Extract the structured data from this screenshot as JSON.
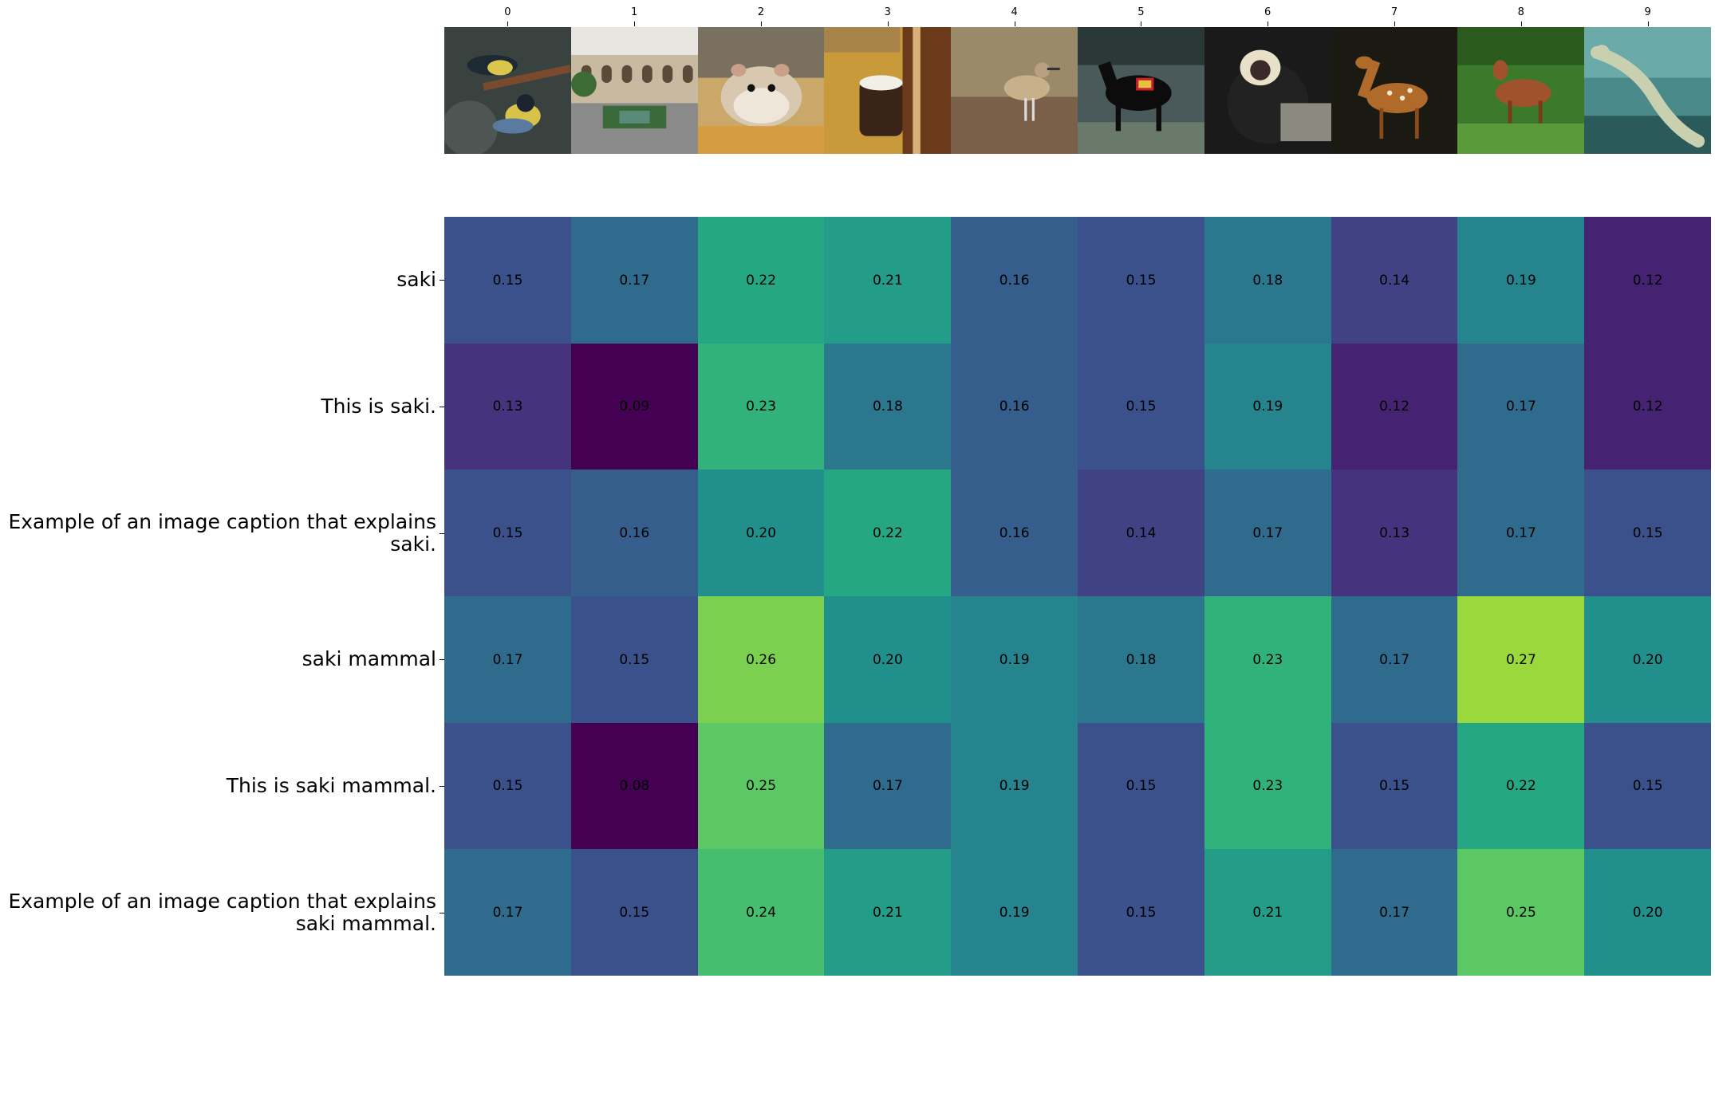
{
  "chart_data": {
    "type": "heatmap",
    "title": "",
    "xlabel": "",
    "ylabel": "",
    "x_tick_labels": [
      "0",
      "1",
      "2",
      "3",
      "4",
      "5",
      "6",
      "7",
      "8",
      "9"
    ],
    "y_tick_labels": [
      "saki",
      "This is saki.",
      "Example of an image caption that explains saki.",
      "saki mammal",
      "This is saki mammal.",
      "Example of an image caption that explains saki mammal."
    ],
    "values": [
      [
        0.15,
        0.17,
        0.22,
        0.21,
        0.16,
        0.15,
        0.18,
        0.14,
        0.19,
        0.12
      ],
      [
        0.13,
        0.09,
        0.23,
        0.18,
        0.16,
        0.15,
        0.19,
        0.12,
        0.17,
        0.12
      ],
      [
        0.15,
        0.16,
        0.2,
        0.22,
        0.16,
        0.14,
        0.17,
        0.13,
        0.17,
        0.15
      ],
      [
        0.17,
        0.15,
        0.26,
        0.2,
        0.19,
        0.18,
        0.23,
        0.17,
        0.27,
        0.2
      ],
      [
        0.15,
        0.08,
        0.25,
        0.17,
        0.19,
        0.15,
        0.23,
        0.15,
        0.22,
        0.15
      ],
      [
        0.17,
        0.15,
        0.24,
        0.21,
        0.19,
        0.15,
        0.21,
        0.17,
        0.25,
        0.2
      ]
    ],
    "colormap": "viridis",
    "color_range": [
      0.1,
      0.3
    ],
    "grid": false,
    "thumbnails": [
      "birds-icon",
      "courtyard-icon",
      "hamster-icon",
      "cup-icon",
      "shorebird-icon",
      "horse-icon",
      "monkey-icon",
      "deer-icon",
      "deer-grass-icon",
      "lizard-icon"
    ]
  }
}
